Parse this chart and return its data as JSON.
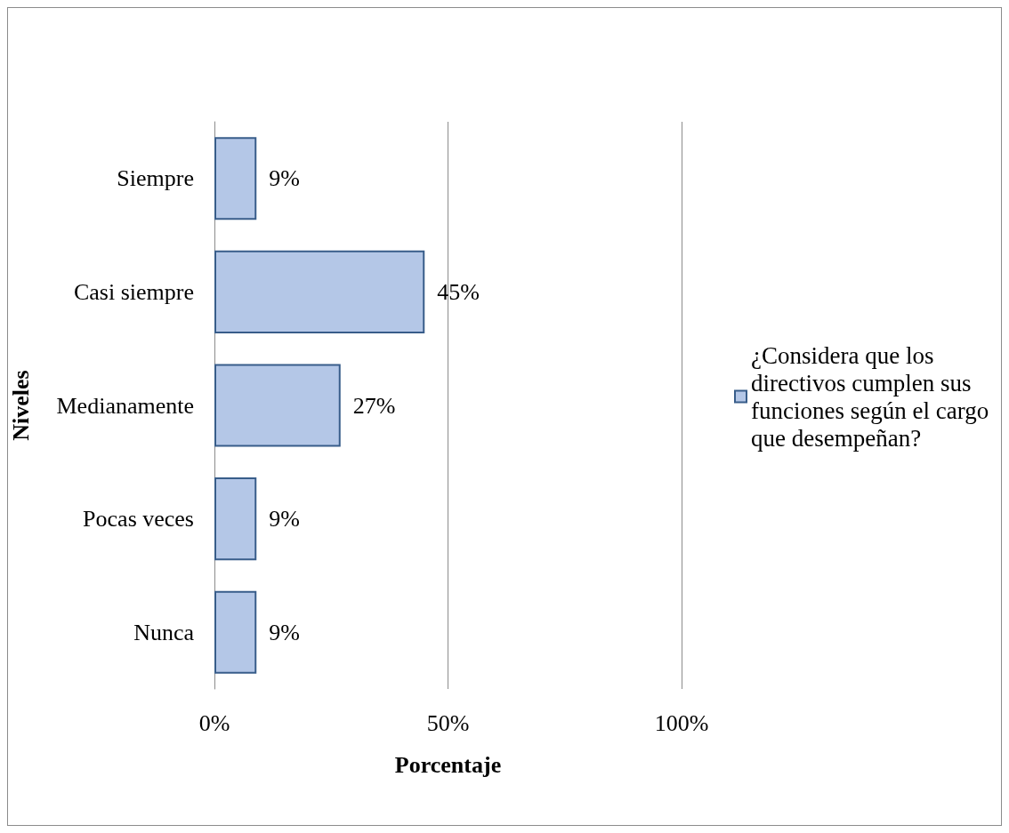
{
  "chart_data": {
    "type": "bar",
    "orientation": "horizontal",
    "categories": [
      "Siempre",
      "Casi siempre",
      "Medianamente",
      "Pocas veces",
      "Nunca"
    ],
    "series": [
      {
        "name": "¿Considera que los directivos cumplen sus funciones según el cargo que desempeñan?",
        "color": "#b4c7e7",
        "values": [
          9,
          45,
          27,
          9,
          9
        ],
        "value_labels": [
          "9%",
          "45%",
          "27%",
          "9%",
          "9%"
        ]
      }
    ],
    "xlabel": "Porcentaje",
    "ylabel": "Niveles",
    "xlim": [
      0,
      100
    ],
    "xticks": [
      {
        "value": 0,
        "label": "0%"
      },
      {
        "value": 50,
        "label": "50%"
      },
      {
        "value": 100,
        "label": "100%"
      }
    ],
    "grid": "x",
    "legend": "right"
  }
}
